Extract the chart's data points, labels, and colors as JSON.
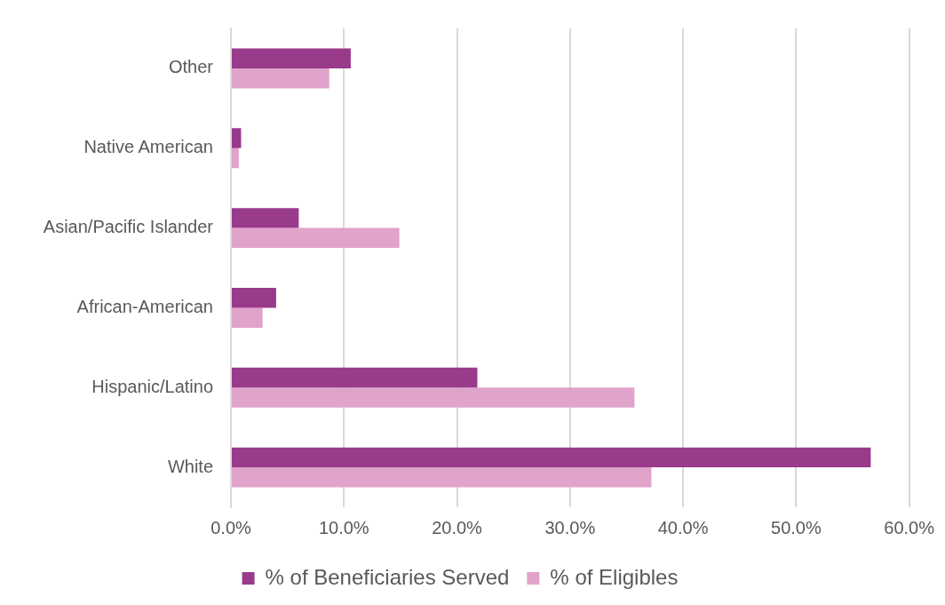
{
  "chart_data": {
    "type": "bar",
    "orientation": "horizontal",
    "categories": [
      "Other",
      "Native American",
      "Asian/Pacific Islander",
      "African-American",
      "Hispanic/Latino",
      "White"
    ],
    "series": [
      {
        "name": "% of Beneficiaries Served",
        "color": "#993a8b",
        "values": [
          10.6,
          0.9,
          6.0,
          4.0,
          21.8,
          56.6
        ]
      },
      {
        "name": "% of Eligibles",
        "color": "#e0a3c9",
        "values": [
          8.7,
          0.7,
          14.9,
          2.8,
          35.7,
          37.2
        ]
      }
    ],
    "xlim": [
      0,
      60
    ],
    "xticks": [
      {
        "value": 0,
        "label": "0.0%"
      },
      {
        "value": 10,
        "label": "10.0%"
      },
      {
        "value": 20,
        "label": "20.0%"
      },
      {
        "value": 30,
        "label": "30.0%"
      },
      {
        "value": 40,
        "label": "40.0%"
      },
      {
        "value": 50,
        "label": "50.0%"
      },
      {
        "value": 60,
        "label": "60.0%"
      }
    ],
    "grid": "x",
    "legend": "bottom"
  }
}
